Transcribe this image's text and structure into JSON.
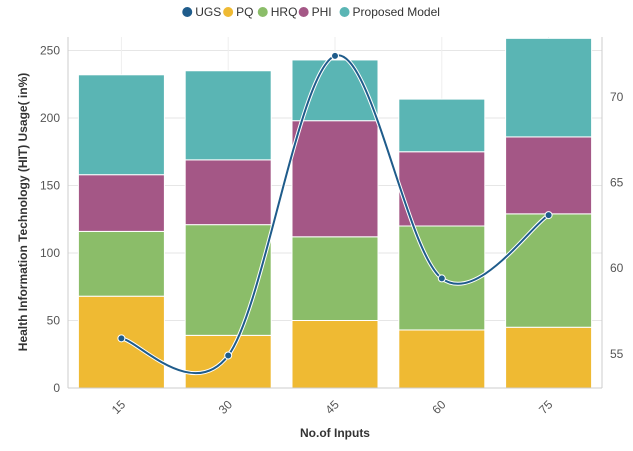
{
  "chart_data": {
    "type": "bar",
    "stacked": true,
    "categories": [
      "15",
      "30",
      "45",
      "60",
      "75"
    ],
    "xlabel": "No.of Inputs",
    "ylabel": "Health Information Technology (HIT) Usage( in%)",
    "ylim": [
      0,
      260
    ],
    "yticks": [
      0,
      50,
      100,
      150,
      200,
      250
    ],
    "y2lim": [
      53,
      73.5
    ],
    "y2ticks": [
      55,
      60,
      65,
      70
    ],
    "legend_position": "top",
    "grid": true,
    "series": [
      {
        "name": "PQ",
        "color": "#EFBA33",
        "values": [
          68,
          39,
          50,
          43,
          45
        ]
      },
      {
        "name": "HRQ",
        "color": "#8BBD69",
        "values": [
          48,
          82,
          62,
          77,
          84
        ]
      },
      {
        "name": "PHI",
        "color": "#A45786",
        "values": [
          42,
          48,
          86,
          55,
          57
        ]
      },
      {
        "name": "Proposed Model",
        "color": "#5AB5B4",
        "values": [
          74,
          66,
          45,
          39,
          73
        ]
      }
    ],
    "line_series": {
      "name": "UGS",
      "color": "#1F5C8B",
      "axis": "right",
      "values": [
        55.9,
        54.9,
        72.4,
        59.4,
        63.1
      ]
    }
  }
}
